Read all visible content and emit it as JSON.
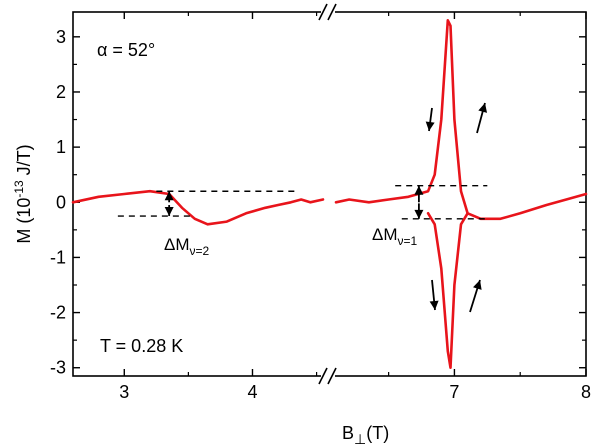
{
  "chart_data": {
    "type": "line",
    "title": "",
    "xlabel": "B",
    "xlabel_sub": "⊥",
    "xlabel_unit": "(T)",
    "ylabel_prefix": "M (10",
    "ylabel_exp": "-13",
    "ylabel_suffix": " J/T)",
    "broken_x_axis": true,
    "x_segments": [
      {
        "xlim": [
          2.6,
          4.55
        ],
        "xticks": [
          3,
          4
        ],
        "xtick_labels": [
          "3",
          "4"
        ]
      },
      {
        "xlim": [
          6.1,
          8.0
        ],
        "xticks": [
          7,
          8
        ],
        "xtick_labels": [
          "7",
          "8"
        ]
      }
    ],
    "ylim": [
      -3.15,
      3.45
    ],
    "yticks": [
      -3,
      -2,
      -1,
      0,
      1,
      2,
      3
    ],
    "ytick_labels": [
      "-3",
      "-2",
      "-1",
      "0",
      "1",
      "2",
      "3"
    ],
    "grid": false,
    "series_color": "#e8141b",
    "series": [
      {
        "name": "",
        "segment": 0,
        "x": [
          2.6,
          2.8,
          3.0,
          3.2,
          3.35,
          3.45,
          3.55,
          3.65,
          3.8,
          3.95,
          4.1,
          4.2,
          4.3,
          4.38,
          4.45,
          4.55
        ],
        "y": [
          0.0,
          0.1,
          0.15,
          0.2,
          0.15,
          -0.1,
          -0.3,
          -0.4,
          -0.35,
          -0.2,
          -0.1,
          -0.05,
          0.0,
          0.05,
          0.0,
          0.05
        ]
      },
      {
        "name": "",
        "segment": 1,
        "x": [
          6.1,
          6.2,
          6.35,
          6.5,
          6.65,
          6.8,
          6.85,
          6.9,
          6.95,
          6.97,
          7.0,
          7.05,
          7.1,
          7.2,
          7.35,
          7.5,
          7.7,
          7.85,
          8.0
        ],
        "y": [
          0.0,
          0.05,
          0.0,
          0.05,
          0.1,
          0.2,
          0.5,
          1.5,
          3.3,
          3.2,
          1.5,
          0.2,
          -0.2,
          -0.3,
          -0.3,
          -0.2,
          -0.05,
          0.05,
          0.15
        ]
      },
      {
        "name": "",
        "segment": 1,
        "x": [
          6.8,
          6.85,
          6.9,
          6.95,
          6.97,
          7.0,
          7.05,
          7.1
        ],
        "y": [
          -0.2,
          -0.4,
          -1.2,
          -2.7,
          -3.0,
          -1.5,
          -0.4,
          -0.2
        ]
      }
    ],
    "annotations": {
      "alpha": "α = 52°",
      "temperature": "T = 0.28 K",
      "dm_nu2_main": "ΔM",
      "dm_nu2_sub": "ν=2",
      "dm_nu1_main": "ΔM",
      "dm_nu1_sub": "ν=1"
    }
  }
}
